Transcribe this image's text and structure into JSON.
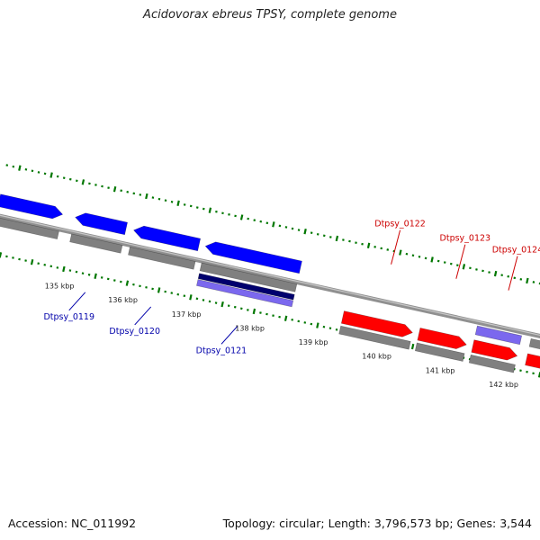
{
  "title": "Acidovorax ebreus TPSY, complete genome",
  "footer": {
    "accession": "Accession: NC_011992",
    "summary": "Topology: circular; Length: 3,796,573 bp; Genes: 3,544"
  },
  "colors": {
    "forward_gene": "#ff0000",
    "reverse_gene": "#0000ff",
    "rna_feature": "#7b68ee",
    "dark_feature": "#00006e",
    "gene_track": "#808080",
    "backbone": "#909090",
    "ticks": "#007700",
    "forward_label": "#cc0000",
    "reverse_label": "#0000aa"
  },
  "axis": {
    "unit": "kbp",
    "ticks": [
      {
        "kbp": 135,
        "label": "135 kbp"
      },
      {
        "kbp": 136,
        "label": "136 kbp"
      },
      {
        "kbp": 137,
        "label": "137 kbp"
      },
      {
        "kbp": 138,
        "label": "138 kbp"
      },
      {
        "kbp": 139,
        "label": "139 kbp"
      },
      {
        "kbp": 140,
        "label": "140 kbp"
      },
      {
        "kbp": 141,
        "label": "141 kbp"
      },
      {
        "kbp": 142,
        "label": "142 kbp"
      }
    ]
  },
  "genes": [
    {
      "name": "Dtpsy_0119",
      "strand": "reverse",
      "start_kbp": 135.0,
      "end_kbp": 135.8
    },
    {
      "name": "Dtpsy_0120",
      "strand": "reverse",
      "start_kbp": 135.92,
      "end_kbp": 136.95
    },
    {
      "name": "Dtpsy_0121",
      "strand": "reverse",
      "start_kbp": 137.05,
      "end_kbp": 138.55
    },
    {
      "name": "Dtpsy_0122",
      "strand": "forward",
      "start_kbp": 139.35,
      "end_kbp": 140.45
    },
    {
      "name": "Dtpsy_0123",
      "strand": "forward",
      "start_kbp": 140.55,
      "end_kbp": 141.3
    },
    {
      "name": "Dtpsy_0124",
      "strand": "forward",
      "start_kbp": 141.4,
      "end_kbp": 142.1
    }
  ]
}
